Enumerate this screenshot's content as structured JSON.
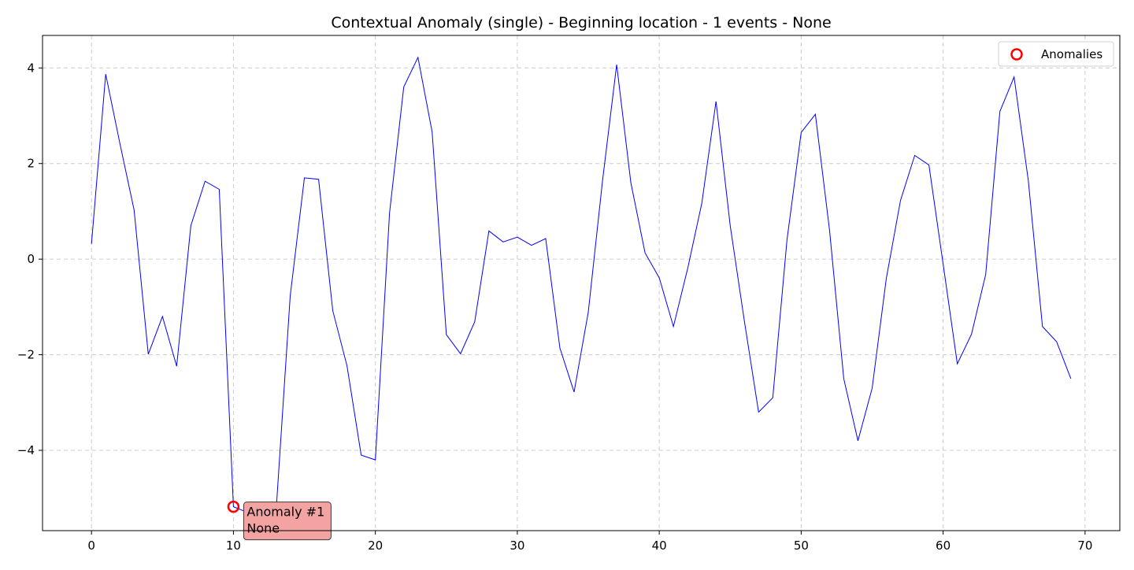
{
  "chart_data": {
    "type": "line",
    "title": "Contextual Anomaly (single) - Beginning location - 1 events - None",
    "xlabel": "",
    "ylabel": "",
    "xlim": [
      -3.45,
      72.45
    ],
    "ylim": [
      -5.68,
      4.68
    ],
    "x_ticks": [
      0,
      10,
      20,
      30,
      40,
      50,
      60,
      70
    ],
    "y_ticks": [
      4,
      2,
      0,
      -2,
      -4
    ],
    "y_tick_labels": [
      "4",
      "2",
      "0",
      "−2",
      "−4"
    ],
    "x_tick_labels": [
      "0",
      "10",
      "20",
      "30",
      "40",
      "50",
      "60",
      "70"
    ],
    "grid": true,
    "grid_style": "dashed",
    "legend_position": "top-right",
    "series": [
      {
        "color": "#0000ff",
        "x": [
          0,
          1,
          2,
          3,
          4,
          5,
          6,
          7,
          8,
          9,
          10,
          11,
          12,
          13,
          14,
          15,
          16,
          17,
          18,
          19,
          20,
          21,
          22,
          23,
          24,
          25,
          26,
          27,
          28,
          29,
          30,
          31,
          32,
          33,
          34,
          35,
          36,
          37,
          38,
          39,
          40,
          41,
          42,
          43,
          44,
          45,
          46,
          47,
          48,
          49,
          50,
          51,
          52,
          53,
          54,
          55,
          56,
          57,
          58,
          59,
          60,
          61,
          62,
          63,
          64,
          65,
          66,
          67,
          68,
          69
        ],
        "values": [
          0.32,
          3.87,
          2.42,
          1.03,
          -1.99,
          -1.2,
          -2.24,
          0.7,
          1.63,
          1.46,
          -5.18,
          -5.3,
          -5.5,
          -5.3,
          -0.77,
          1.7,
          1.67,
          -1.08,
          -2.23,
          -4.1,
          -4.2,
          0.97,
          3.6,
          4.22,
          2.66,
          -1.58,
          -1.98,
          -1.31,
          0.59,
          0.36,
          0.46,
          0.29,
          0.43,
          -1.86,
          -2.78,
          -1.11,
          1.63,
          4.07,
          1.6,
          0.13,
          -0.39,
          -1.41,
          -0.2,
          1.17,
          3.3,
          0.7,
          -1.3,
          -3.2,
          -2.9,
          0.4,
          2.65,
          3.03,
          0.6,
          -2.5,
          -3.8,
          -2.7,
          -0.4,
          1.23,
          2.17,
          1.97,
          -0.1,
          -2.19,
          -1.57,
          -0.32,
          3.09,
          3.81,
          1.65,
          -1.41,
          -1.73,
          -2.5
        ]
      }
    ],
    "anomalies": [
      {
        "x": 10,
        "y": -5.18,
        "label_line1": "Anomaly #1",
        "label_line2": "None"
      }
    ],
    "legend": {
      "label": "Anomalies",
      "marker_color": "#ff0000"
    },
    "colors": {
      "line": "#0000ff",
      "anomaly_marker": "#ff0000",
      "annotation_fill": "#f4a3a3",
      "annotation_border": "#3a3a3a",
      "grid": "#cccccc"
    }
  }
}
